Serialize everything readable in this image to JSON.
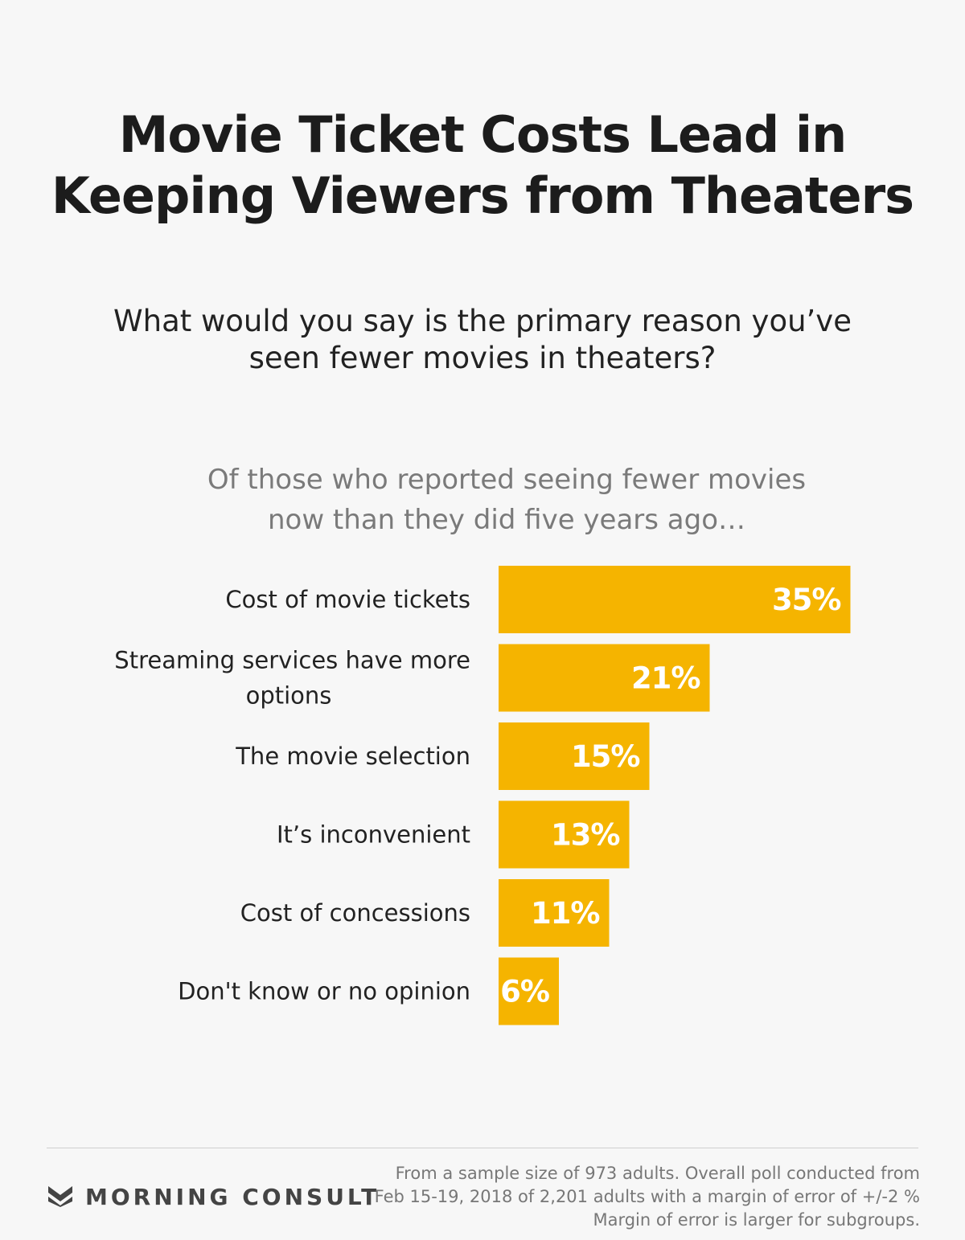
{
  "title": {
    "line1": "Movie Ticket Costs Lead in",
    "line2": "Keeping Viewers from Theaters"
  },
  "question": {
    "line1": "What would you say is the primary reason you’ve",
    "line2": "seen fewer movies in theaters?"
  },
  "subtitle": {
    "line1": "Of those who reported seeing fewer movies",
    "line2": "now than they did five years ago…"
  },
  "colors": {
    "bar": "#f5b400",
    "value_text": "#ffffff",
    "background": "#f7f7f7"
  },
  "chart_data": {
    "type": "bar",
    "orientation": "horizontal",
    "categories": [
      [
        "Cost of movie tickets"
      ],
      [
        "Streaming services have more",
        "options"
      ],
      [
        "The movie selection"
      ],
      [
        "It’s inconvenient"
      ],
      [
        "Cost of concessions"
      ],
      [
        "Don't know or no opinion"
      ]
    ],
    "values": [
      35,
      21,
      15,
      13,
      11,
      6
    ],
    "value_labels": [
      "35%",
      "21%",
      "15%",
      "13%",
      "11%",
      "6%"
    ],
    "unit": "%",
    "grid": false,
    "legend": "none"
  },
  "footer": {
    "logo_text": "MORNING CONSULT",
    "logo_icon": "morning-consult-m-icon",
    "note_line1": "From a sample size of 973 adults. Overall poll conducted from",
    "note_line2": "Feb 15-19, 2018 of 2,201 adults with a margin of error of +/-2 %",
    "note_line3": "Margin of error is larger for subgroups."
  }
}
